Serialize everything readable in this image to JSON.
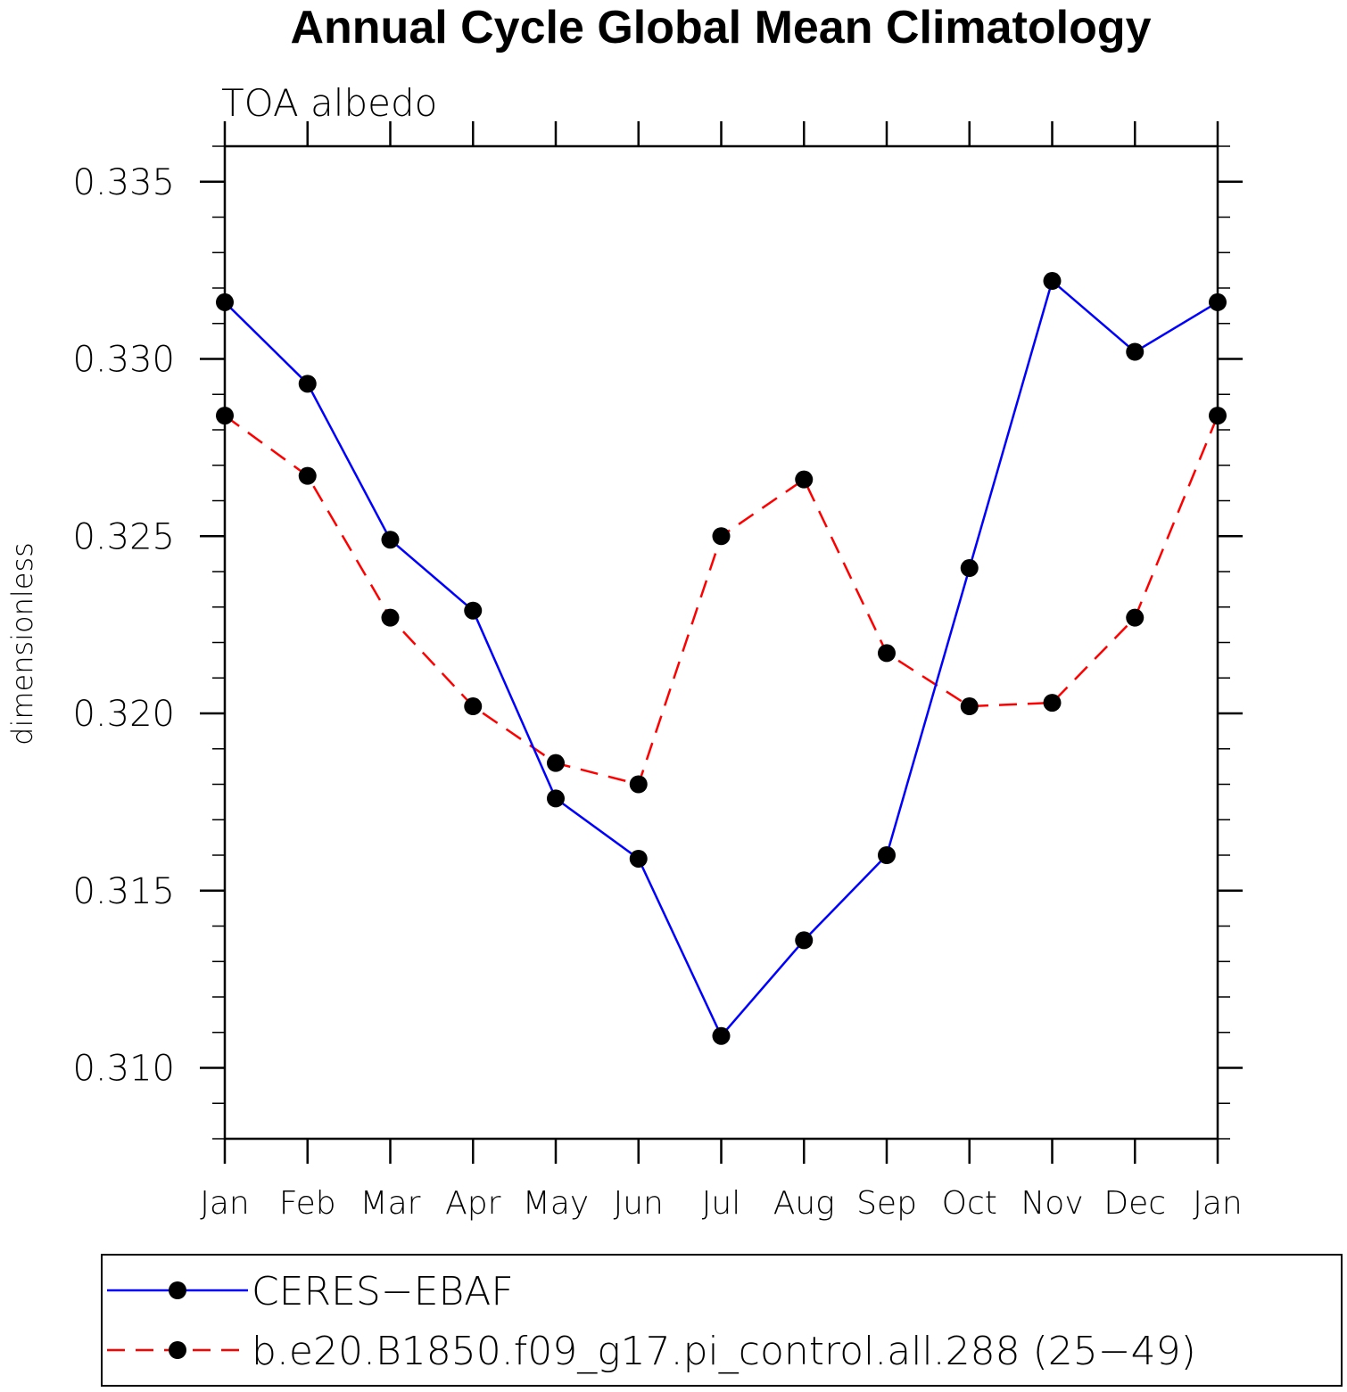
{
  "chart_data": {
    "type": "line",
    "title": "Annual Cycle Global Mean Climatology",
    "subtitle": "TOA albedo",
    "xlabel": "",
    "ylabel": "dimensionless",
    "categories": [
      "Jan",
      "Feb",
      "Mar",
      "Apr",
      "May",
      "Jun",
      "Jul",
      "Aug",
      "Sep",
      "Oct",
      "Nov",
      "Dec",
      "Jan"
    ],
    "ylim": [
      0.308,
      0.336
    ],
    "yticks": [
      0.31,
      0.315,
      0.32,
      0.325,
      0.33,
      0.335
    ],
    "ytick_labels": [
      "0.310",
      "0.315",
      "0.320",
      "0.325",
      "0.330",
      "0.335"
    ],
    "grid": false,
    "legend_position": "bottom",
    "series": [
      {
        "name": "CERES−EBAF",
        "color": "#0000ff",
        "line_style": "solid",
        "marker": "filled-circle",
        "values": [
          0.3316,
          0.3293,
          0.3249,
          0.3229,
          0.3176,
          0.3159,
          0.3109,
          0.3136,
          0.316,
          0.3241,
          0.3322,
          0.3302,
          0.3316
        ]
      },
      {
        "name": "b.e20.B1850.f09_g17.pi_control.all.288 (25−49)",
        "color": "#ff0000",
        "line_style": "dashed",
        "marker": "filled-circle",
        "values": [
          0.3284,
          0.3267,
          0.3227,
          0.3202,
          0.3186,
          0.318,
          0.325,
          0.3266,
          0.3217,
          0.3202,
          0.3203,
          0.3227,
          0.3284
        ]
      }
    ]
  }
}
